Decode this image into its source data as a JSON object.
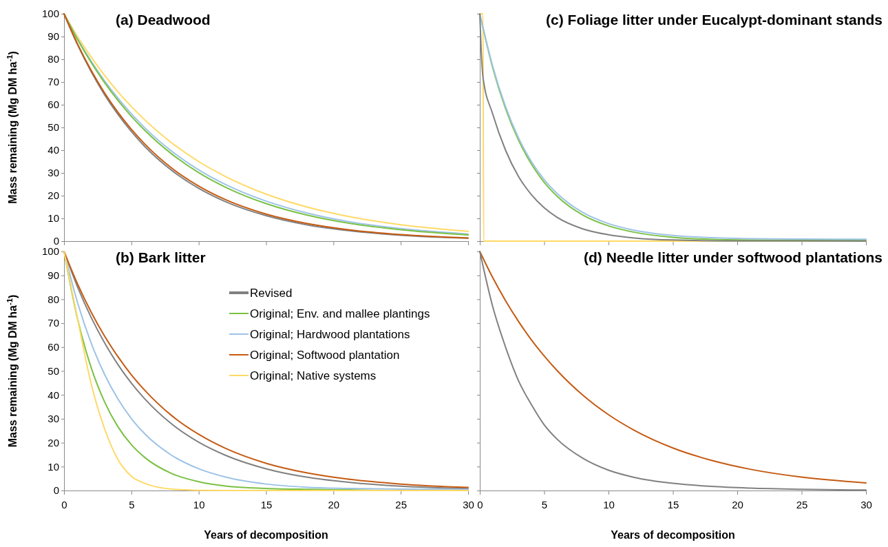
{
  "chart_data": [
    {
      "type": "line",
      "title": "(a) Deadwood",
      "ylabel": "Mass remaining (Mg DM ha$^{-1}$)",
      "xlim": [
        0,
        30
      ],
      "ylim": [
        0,
        100
      ],
      "xticks": [
        0,
        5,
        10,
        15,
        20,
        25,
        30
      ],
      "yticks": [
        0,
        10,
        20,
        30,
        40,
        50,
        60,
        70,
        80,
        90,
        100
      ],
      "tick_labels": "y",
      "grid": false,
      "legend": false,
      "marker": "none",
      "line_style": "solid",
      "series": [
        {
          "color": "#ffd966",
          "x": [
            0,
            1,
            2,
            3,
            4,
            5,
            6,
            8,
            10,
            12,
            15,
            18,
            21,
            25,
            30
          ],
          "values": [
            100,
            90.0,
            81.1,
            73.0,
            65.7,
            59.2,
            53.3,
            43.2,
            35.0,
            28.4,
            20.7,
            15.1,
            11.0,
            7.2,
            4.3
          ]
        },
        {
          "color": "#9dc3e6",
          "x": [
            0,
            1,
            2,
            3,
            4,
            5,
            6,
            8,
            10,
            12,
            15,
            18,
            21,
            25,
            30
          ],
          "values": [
            100,
            89.0,
            79.3,
            70.6,
            62.9,
            56.0,
            49.8,
            39.5,
            31.3,
            24.9,
            17.6,
            12.4,
            8.7,
            5.5,
            3.1
          ]
        },
        {
          "color": "#7ac143",
          "x": [
            0,
            1,
            2,
            3,
            4,
            5,
            6,
            8,
            10,
            12,
            15,
            18,
            21,
            25,
            30
          ],
          "values": [
            100,
            88.7,
            78.7,
            69.8,
            61.9,
            54.9,
            48.7,
            38.3,
            30.1,
            23.7,
            16.5,
            11.5,
            8.0,
            5.0,
            2.7
          ]
        },
        {
          "color": "#808080",
          "x": [
            0,
            1,
            2,
            3,
            4,
            5,
            6,
            8,
            10,
            12,
            15,
            18,
            21,
            25,
            30
          ],
          "values": [
            100,
            86.4,
            74.7,
            64.5,
            55.8,
            48.2,
            41.6,
            31.1,
            23.2,
            17.3,
            11.2,
            7.2,
            4.7,
            2.6,
            1.3
          ]
        },
        {
          "color": "#c55a11",
          "x": [
            0,
            1,
            2,
            3,
            4,
            5,
            6,
            8,
            10,
            12,
            15,
            18,
            21,
            25,
            30
          ],
          "values": [
            100,
            86.8,
            75.3,
            65.3,
            56.7,
            49.2,
            42.7,
            32.1,
            24.2,
            18.2,
            11.9,
            7.8,
            5.1,
            2.9,
            1.4
          ]
        }
      ]
    },
    {
      "type": "line",
      "title": "(c) Foliage litter under Eucalypt-dominant stands",
      "xlim": [
        0,
        30
      ],
      "ylim": [
        0,
        100
      ],
      "xticks": [
        0,
        5,
        10,
        15,
        20,
        25,
        30
      ],
      "yticks": [
        0,
        10,
        20,
        30,
        40,
        50,
        60,
        70,
        80,
        90,
        100
      ],
      "tick_labels": false,
      "grid": false,
      "legend": false,
      "marker": "none",
      "line_style": "solid",
      "series": [
        {
          "color": "#ffd966",
          "x": [
            0,
            0.25,
            0.3,
            30
          ],
          "values": [
            100,
            100,
            0,
            0
          ]
        },
        {
          "color": "#7ac143",
          "x": [
            0,
            1,
            2,
            3,
            4,
            5,
            6,
            8,
            10,
            12,
            15,
            20,
            25,
            30
          ],
          "values": [
            100,
            76.3,
            58.3,
            44.5,
            34.0,
            25.9,
            19.8,
            11.5,
            6.7,
            3.9,
            1.7,
            0.5,
            0.3,
            0.3
          ]
        },
        {
          "color": "#9dc3e6",
          "x": [
            0,
            1,
            2,
            3,
            4,
            5,
            6,
            8,
            10,
            12,
            15,
            20,
            25,
            30
          ],
          "values": [
            100,
            77,
            59.2,
            45.5,
            35.1,
            27.1,
            21,
            12.6,
            7.7,
            4.8,
            2.5,
            1.2,
            0.9,
            0.8
          ]
        },
        {
          "color": "#808080",
          "x": [
            0,
            0.1,
            0.25,
            1,
            2,
            3,
            4,
            5,
            6,
            8,
            10,
            12,
            15,
            20,
            30
          ],
          "values": [
            100,
            85,
            72,
            56,
            40,
            28.5,
            20.5,
            14.7,
            10.5,
            5.4,
            2.8,
            1.4,
            0.5,
            0.1,
            0
          ]
        }
      ]
    },
    {
      "type": "line",
      "title": "(b) Bark litter",
      "xlabel": "Years of decomposition",
      "ylabel": "Mass remaining (Mg DM ha$^{-1}$)",
      "xlim": [
        0,
        30
      ],
      "ylim": [
        0,
        100
      ],
      "xticks": [
        0,
        5,
        10,
        15,
        20,
        25,
        30
      ],
      "yticks": [
        0,
        10,
        20,
        30,
        40,
        50,
        60,
        70,
        80,
        90,
        100
      ],
      "grid": false,
      "legend": "top right",
      "marker": "none",
      "line_style": "solid",
      "series": [
        {
          "name": "Revised",
          "color": "#808080",
          "x": [
            0,
            1,
            2,
            3,
            4,
            5,
            6,
            8,
            10,
            12,
            15,
            18,
            21,
            25,
            30
          ],
          "values": [
            100,
            85.2,
            72.6,
            61.9,
            52.7,
            44.9,
            38.3,
            27.8,
            20.2,
            14.7,
            9.1,
            5.6,
            3.5,
            1.8,
            0.8
          ]
        },
        {
          "name": "Original; Env. and mallee plantings",
          "color": "#7ac143",
          "x": [
            0,
            1,
            2,
            3,
            4,
            5,
            6,
            8,
            10,
            12,
            15,
            18,
            21,
            25,
            30
          ],
          "values": [
            100,
            71.9,
            51.7,
            37.2,
            26.7,
            19.2,
            13.8,
            7.1,
            3.7,
            1.9,
            0.9,
            0.5,
            0.3,
            0,
            0
          ]
        },
        {
          "name": "Original; Hardwood plantations",
          "color": "#9dc3e6",
          "x": [
            0,
            1,
            2,
            3,
            4,
            5,
            6,
            8,
            10,
            12,
            15,
            18,
            21,
            25,
            30
          ],
          "values": [
            100,
            78.7,
            61.9,
            48.7,
            38.3,
            30.1,
            23.7,
            14.7,
            9.1,
            5.6,
            2.7,
            1.4,
            0.9,
            0.6,
            0.4
          ]
        },
        {
          "name": "Original; Softwood plantation",
          "color": "#c55a11",
          "x": [
            0,
            1,
            2,
            3,
            4,
            5,
            6,
            8,
            10,
            12,
            15,
            18,
            21,
            25,
            30
          ],
          "values": [
            100,
            86.5,
            74.8,
            64.7,
            56.0,
            48.4,
            41.9,
            31.3,
            23.5,
            17.6,
            11.4,
            7.4,
            4.8,
            2.7,
            1.3
          ]
        },
        {
          "name": "Original; Native systems",
          "color": "#ffd966",
          "x": [
            0,
            1,
            2,
            3,
            4,
            5,
            6,
            8,
            10,
            12,
            15,
            18,
            21,
            25,
            30
          ],
          "values": [
            100,
            72,
            45,
            26,
            13,
            6,
            3,
            0.6,
            0.1,
            0,
            0,
            0,
            0,
            0,
            0
          ]
        }
      ]
    },
    {
      "type": "line",
      "title": "(d) Needle litter under softwood plantations",
      "xlabel": "Years of decomposition",
      "xlim": [
        0,
        30
      ],
      "ylim": [
        0,
        100
      ],
      "xticks": [
        0,
        5,
        10,
        15,
        20,
        25,
        30
      ],
      "yticks": [
        0,
        10,
        20,
        30,
        40,
        50,
        60,
        70,
        80,
        90,
        100
      ],
      "tick_labels": "x",
      "grid": false,
      "legend": false,
      "marker": "none",
      "line_style": "solid",
      "series": [
        {
          "color": "#c55a11",
          "x": [
            0,
            1,
            2,
            3,
            4,
            5,
            6,
            8,
            10,
            12,
            15,
            18,
            21,
            25,
            30
          ],
          "values": [
            100,
            89.1,
            79.4,
            70.8,
            63.1,
            56.3,
            50.2,
            39.9,
            31.7,
            25.2,
            17.8,
            12.6,
            8.9,
            5.6,
            3.2
          ]
        },
        {
          "color": "#808080",
          "x": [
            0,
            1,
            2,
            3,
            4,
            5,
            6,
            8,
            10,
            12,
            15,
            18,
            21,
            25,
            30
          ],
          "values": [
            100,
            77,
            60,
            46,
            36,
            27.5,
            21.5,
            13.5,
            8.5,
            5.5,
            3,
            1.7,
            1,
            0.5,
            0.2
          ]
        }
      ]
    }
  ]
}
